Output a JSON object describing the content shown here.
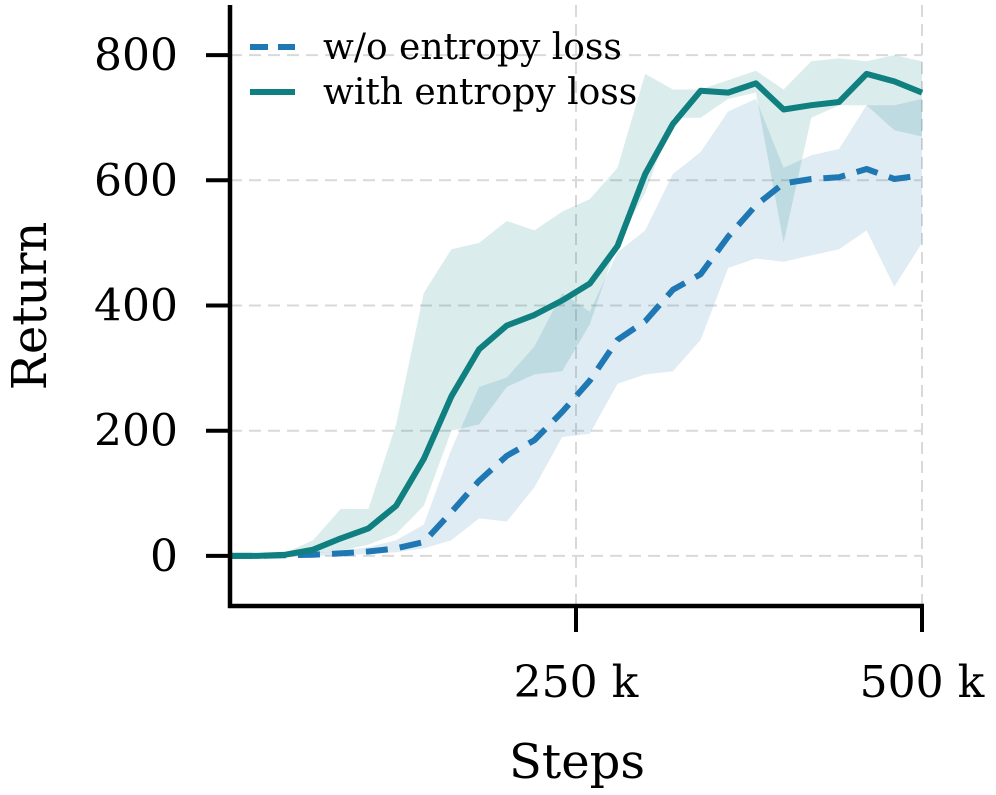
{
  "chart_data": {
    "type": "line",
    "xlabel": "Steps",
    "ylabel": "Return",
    "xlim": [
      0,
      500000
    ],
    "ylim": [
      -80,
      880
    ],
    "x_ticks": [
      250000,
      500000
    ],
    "x_tick_labels": [
      "250 k",
      "500 k"
    ],
    "y_ticks": [
      0,
      200,
      400,
      600,
      800
    ],
    "y_tick_labels": [
      "0",
      "200",
      "400",
      "600",
      "800"
    ],
    "grid": true,
    "legend_position": "top-left",
    "x": [
      0,
      20000,
      40000,
      60000,
      80000,
      100000,
      120000,
      140000,
      160000,
      180000,
      200000,
      220000,
      240000,
      260000,
      280000,
      300000,
      320000,
      340000,
      360000,
      380000,
      400000,
      420000,
      440000,
      460000,
      480000,
      500000
    ],
    "series": [
      {
        "name": "w/o entropy loss",
        "color": "#1f77b4",
        "style": "dashed",
        "values": [
          0,
          0,
          1,
          2,
          4,
          7,
          12,
          22,
          70,
          120,
          160,
          185,
          230,
          280,
          345,
          375,
          425,
          450,
          510,
          560,
          595,
          602,
          605,
          618,
          602,
          608
        ],
        "lower": [
          0,
          0,
          0,
          0,
          1,
          3,
          6,
          12,
          25,
          60,
          55,
          110,
          190,
          195,
          275,
          290,
          295,
          345,
          460,
          475,
          470,
          480,
          490,
          520,
          430,
          500
        ],
        "upper": [
          0,
          0,
          2,
          4,
          8,
          14,
          25,
          50,
          170,
          270,
          285,
          335,
          420,
          390,
          485,
          520,
          610,
          645,
          710,
          730,
          620,
          640,
          650,
          720,
          720,
          730
        ]
      },
      {
        "name": "with entropy loss",
        "color": "#0f7f7f",
        "style": "solid",
        "values": [
          0,
          0,
          2,
          10,
          28,
          44,
          80,
          155,
          255,
          330,
          368,
          385,
          408,
          435,
          495,
          610,
          690,
          743,
          740,
          755,
          713,
          720,
          725,
          770,
          758,
          740
        ],
        "lower": [
          0,
          0,
          0,
          3,
          8,
          18,
          35,
          80,
          200,
          210,
          270,
          290,
          295,
          370,
          500,
          580,
          700,
          700,
          730,
          740,
          500,
          700,
          720,
          720,
          680,
          670
        ],
        "upper": [
          0,
          0,
          5,
          25,
          75,
          75,
          210,
          420,
          490,
          500,
          535,
          520,
          550,
          570,
          620,
          770,
          745,
          745,
          760,
          775,
          745,
          790,
          795,
          790,
          800,
          790
        ]
      }
    ]
  }
}
